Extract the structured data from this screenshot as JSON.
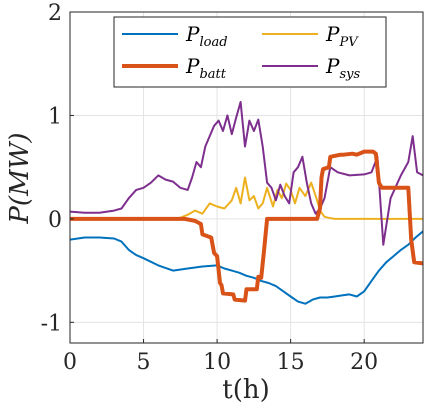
{
  "chart_data": {
    "type": "line",
    "xlabel": "t(h)",
    "ylabel": "P(MW)",
    "xlim": [
      0,
      24
    ],
    "ylim": [
      -1.2,
      2.0
    ],
    "xticks": [
      0,
      5,
      10,
      15,
      20
    ],
    "xtick_labels": [
      "0",
      "5",
      "10",
      "15",
      "20"
    ],
    "yticks": [
      -1,
      0,
      1,
      2
    ],
    "ytick_labels": [
      "-1",
      "0",
      "1",
      "2"
    ],
    "grid": true,
    "legend_position": "top",
    "legend": [
      {
        "symbol": "P",
        "subscript": "load",
        "color": "#0072BD"
      },
      {
        "symbol": "P",
        "subscript": "PV",
        "color": "#EDB120"
      },
      {
        "symbol": "P",
        "subscript": "batt",
        "color": "#D95319"
      },
      {
        "symbol": "P",
        "subscript": "sys",
        "color": "#7E2F8E"
      }
    ],
    "series": [
      {
        "name": "P_load",
        "color": "#0072BD",
        "width": 2,
        "x": [
          0,
          1,
          2,
          3,
          3.5,
          4,
          4.5,
          5,
          6,
          7,
          8,
          9,
          10,
          10.5,
          11,
          11.5,
          12,
          12.5,
          13,
          13.5,
          14,
          14.5,
          15,
          15.5,
          16,
          16.5,
          17,
          17.5,
          18,
          18.5,
          19,
          19.5,
          20,
          20.5,
          21,
          21.5,
          22,
          22.5,
          23,
          23.5,
          24
        ],
        "y": [
          -0.2,
          -0.18,
          -0.18,
          -0.19,
          -0.22,
          -0.3,
          -0.35,
          -0.38,
          -0.45,
          -0.5,
          -0.48,
          -0.46,
          -0.45,
          -0.48,
          -0.5,
          -0.52,
          -0.55,
          -0.57,
          -0.6,
          -0.62,
          -0.65,
          -0.7,
          -0.75,
          -0.8,
          -0.82,
          -0.78,
          -0.76,
          -0.76,
          -0.75,
          -0.74,
          -0.73,
          -0.75,
          -0.7,
          -0.6,
          -0.5,
          -0.42,
          -0.36,
          -0.3,
          -0.25,
          -0.18,
          -0.12
        ]
      },
      {
        "name": "P_PV",
        "color": "#EDB120",
        "width": 2,
        "x": [
          0,
          6,
          7,
          7.5,
          8,
          8.5,
          9,
          9.5,
          10,
          10.5,
          11,
          11.3,
          11.6,
          11.9,
          12.2,
          12.5,
          12.8,
          13.1,
          13.4,
          13.8,
          14.1,
          14.4,
          14.7,
          15,
          15.3,
          15.6,
          16,
          16.4,
          16.8,
          17,
          17.3,
          17.6,
          18,
          24
        ],
        "y": [
          0,
          0,
          0,
          0.01,
          0.04,
          0.08,
          0.05,
          0.15,
          0.12,
          0.1,
          0.18,
          0.3,
          0.15,
          0.4,
          0.18,
          0.22,
          0.1,
          0.15,
          0.3,
          0.12,
          0.28,
          0.2,
          0.34,
          0.28,
          0.15,
          0.3,
          0.22,
          0.35,
          0.18,
          0.08,
          0.02,
          0.01,
          0,
          0
        ]
      },
      {
        "name": "P_batt",
        "color": "#D95319",
        "width": 4,
        "x": [
          0,
          7,
          7.8,
          8.5,
          8.9,
          9.0,
          9.4,
          9.6,
          9.8,
          10.0,
          10.2,
          10.3,
          10.4,
          11.1,
          11.2,
          11.9,
          12.0,
          12.7,
          12.8,
          13.0,
          13.2,
          13.4,
          16.8,
          17.0,
          17.1,
          17.2,
          17.6,
          17.7,
          18.4,
          18.6,
          19.2,
          19.5,
          20.0,
          20.6,
          20.8,
          21.0,
          21.2,
          23.0,
          23.2,
          23.4,
          24.0
        ],
        "y": [
          0,
          0,
          0,
          -0.02,
          -0.05,
          -0.15,
          -0.17,
          -0.18,
          -0.33,
          -0.36,
          -0.62,
          -0.64,
          -0.72,
          -0.73,
          -0.78,
          -0.79,
          -0.68,
          -0.68,
          -0.56,
          -0.57,
          -0.3,
          0,
          0,
          0.1,
          0.4,
          0.48,
          0.5,
          0.6,
          0.62,
          0.62,
          0.63,
          0.62,
          0.65,
          0.65,
          0.63,
          0.35,
          0.3,
          0.3,
          -0.2,
          -0.42,
          -0.43
        ]
      },
      {
        "name": "P_sys",
        "color": "#7E2F8E",
        "width": 2,
        "x": [
          0,
          1,
          2,
          3,
          3.5,
          4,
          4.5,
          5,
          5.5,
          6,
          6.5,
          7,
          7.5,
          8,
          8.3,
          8.6,
          8.9,
          9.2,
          9.5,
          9.8,
          10.1,
          10.4,
          10.7,
          11.0,
          11.3,
          11.6,
          11.9,
          12.2,
          12.5,
          12.8,
          13.1,
          13.4,
          13.7,
          14.0,
          14.3,
          14.6,
          14.9,
          15.2,
          15.5,
          15.8,
          16.1,
          16.4,
          16.7,
          17.0,
          17.3,
          17.7,
          18.2,
          19.0,
          20.0,
          20.5,
          20.9,
          21.0,
          21.3,
          21.8,
          22.5,
          23.0,
          23.3,
          23.6,
          24.0
        ],
        "y": [
          0.07,
          0.06,
          0.06,
          0.08,
          0.1,
          0.2,
          0.28,
          0.3,
          0.35,
          0.42,
          0.38,
          0.36,
          0.3,
          0.28,
          0.4,
          0.55,
          0.5,
          0.7,
          0.8,
          0.9,
          0.95,
          0.85,
          1.0,
          0.82,
          0.98,
          1.13,
          0.7,
          0.95,
          0.85,
          0.96,
          0.7,
          0.35,
          0.3,
          0.18,
          0.33,
          0.22,
          0.15,
          0.45,
          0.5,
          0.6,
          0.35,
          0.15,
          0.05,
          0.1,
          0.2,
          0.5,
          0.45,
          0.42,
          0.43,
          0.45,
          0.6,
          0.38,
          -0.25,
          0.2,
          0.42,
          0.55,
          0.8,
          0.45,
          0.42
        ]
      }
    ]
  }
}
